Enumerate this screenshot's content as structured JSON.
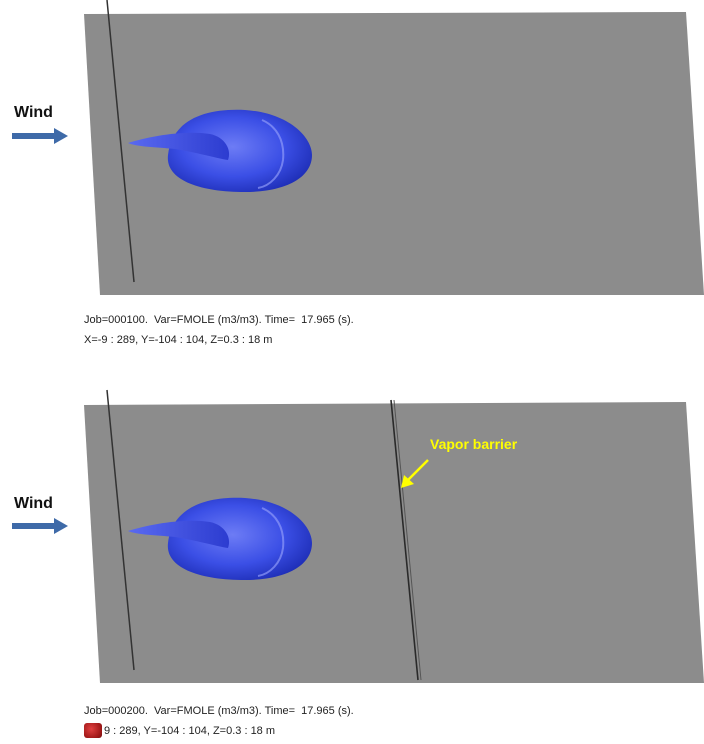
{
  "panels": [
    {
      "wind_label": "Wind",
      "caption_line1": "Job=000100.  Var=FMOLE (m3/m3). Time=  17.965 (s).",
      "caption_line2": "X=-9 : 289, Y=-104 : 104, Z=0.3 : 18 m"
    },
    {
      "wind_label": "Wind",
      "caption_line1": "Job=000200.  Var=FMOLE (m3/m3). Time=  17.965 (s).",
      "caption_line2": "9 : 289, Y=-104 : 104, Z=0.3 : 18 m",
      "barrier_label": "Vapor barrier"
    }
  ],
  "colors": {
    "ground": "#8c8c8c",
    "plume": "#3b4fe6",
    "arrow": "#3e6aa8",
    "barrier_label": "#ffff00"
  },
  "icons": [
    "wind-arrow-icon",
    "red-app-icon"
  ]
}
